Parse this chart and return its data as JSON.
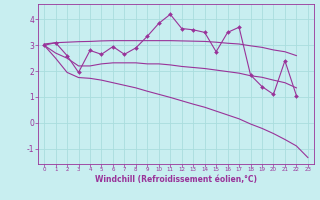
{
  "xlabel": "Windchill (Refroidissement éolien,°C)",
  "bg_color": "#c8eef0",
  "grid_color": "#aadddd",
  "line_color": "#993399",
  "ylim": [
    -1.6,
    4.6
  ],
  "xlim": [
    -0.5,
    23.5
  ],
  "series1_x": [
    0,
    1,
    2,
    3,
    4,
    5,
    6,
    7,
    8,
    9,
    10,
    11,
    12,
    13,
    14,
    15,
    16,
    17,
    18,
    19,
    20,
    21,
    22
  ],
  "series1_y": [
    3.0,
    3.1,
    2.6,
    1.95,
    2.8,
    2.65,
    2.95,
    2.65,
    2.9,
    3.35,
    3.85,
    4.2,
    3.65,
    3.6,
    3.5,
    2.75,
    3.5,
    3.7,
    1.85,
    1.4,
    1.1,
    2.4,
    1.05
  ],
  "series2_x": [
    0,
    1,
    2,
    3,
    4,
    5,
    6,
    7,
    8,
    9,
    10,
    11,
    12,
    13,
    14,
    15,
    16,
    17,
    18,
    19,
    20,
    21,
    22
  ],
  "series2_y": [
    3.05,
    3.1,
    3.12,
    3.14,
    3.15,
    3.17,
    3.18,
    3.18,
    3.18,
    3.18,
    3.18,
    3.18,
    3.17,
    3.16,
    3.15,
    3.12,
    3.08,
    3.05,
    2.98,
    2.92,
    2.82,
    2.75,
    2.6
  ],
  "series3_x": [
    0,
    1,
    2,
    3,
    4,
    5,
    6,
    7,
    8,
    9,
    10,
    11,
    12,
    13,
    14,
    15,
    16,
    17,
    18,
    19,
    20,
    21,
    22
  ],
  "series3_y": [
    3.0,
    2.7,
    2.5,
    2.2,
    2.2,
    2.28,
    2.32,
    2.32,
    2.32,
    2.28,
    2.28,
    2.24,
    2.18,
    2.14,
    2.1,
    2.04,
    1.98,
    1.92,
    1.82,
    1.76,
    1.65,
    1.55,
    1.35
  ],
  "series4_x": [
    0,
    1,
    2,
    3,
    4,
    5,
    6,
    7,
    8,
    9,
    10,
    11,
    12,
    13,
    14,
    15,
    16,
    17,
    18,
    19,
    20,
    21,
    22,
    23
  ],
  "series4_y": [
    3.0,
    2.5,
    1.95,
    1.75,
    1.72,
    1.65,
    1.55,
    1.45,
    1.35,
    1.22,
    1.1,
    0.98,
    0.85,
    0.72,
    0.6,
    0.45,
    0.3,
    0.15,
    -0.05,
    -0.22,
    -0.42,
    -0.65,
    -0.9,
    -1.35
  ]
}
